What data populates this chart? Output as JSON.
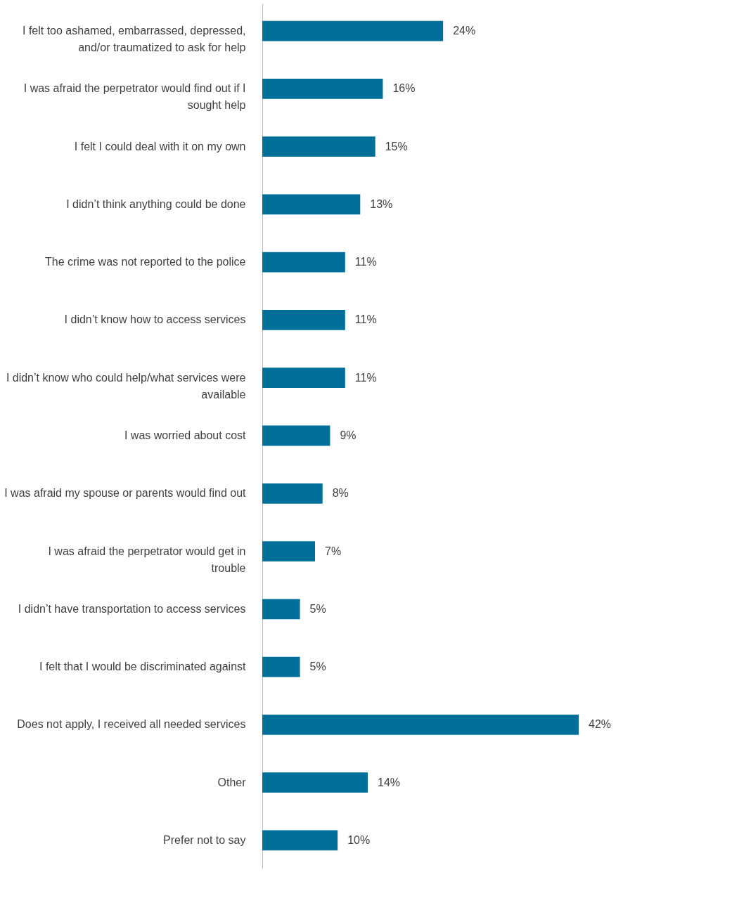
{
  "chart_data": {
    "type": "bar",
    "orientation": "horizontal",
    "categories": [
      "I felt too ashamed, embarrassed, depressed, and/or traumatized to ask for help",
      "I was afraid the perpetrator would find out if I sought help",
      "I felt I could deal with it on my own",
      "I didn’t think anything could be done",
      "The crime was not reported to the police",
      "I didn’t know how to access services",
      "I didn’t know who could help/what services were available",
      "I was worried about cost",
      "I was afraid my spouse or parents would find out",
      "I was afraid the perpetrator would get in trouble",
      "I didn’t have transportation to access services",
      "I felt that I would be discriminated against",
      "Does not apply, I received all needed services",
      "Other",
      "Prefer not to say"
    ],
    "values": [
      24,
      16,
      15,
      13,
      11,
      11,
      11,
      9,
      8,
      7,
      5,
      5,
      42,
      14,
      10
    ],
    "value_labels": [
      "24%",
      "16%",
      "15%",
      "13%",
      "11%",
      "11%",
      "11%",
      "9%",
      "8%",
      "7%",
      "5%",
      "5%",
      "42%",
      "14%",
      "10%"
    ],
    "color": "#00709a",
    "grid": false,
    "tick_labels": "y"
  }
}
